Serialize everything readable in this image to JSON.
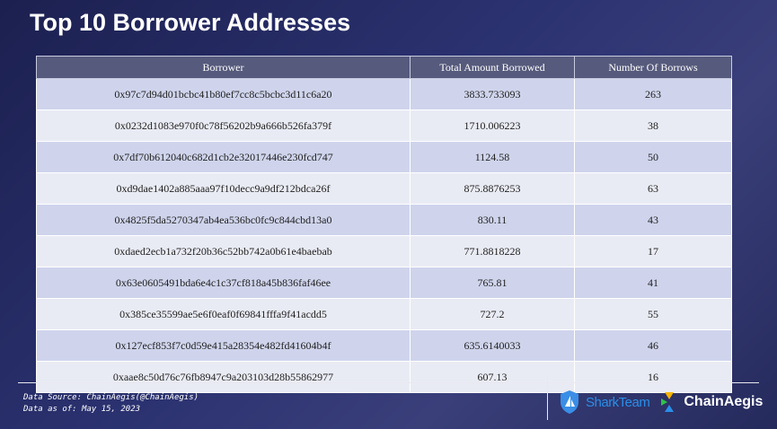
{
  "title": "Top 10 Borrower Addresses",
  "table": {
    "headers": [
      "Borrower",
      "Total Amount Borrowed",
      "Number Of Borrows"
    ],
    "rows": [
      [
        "0x97c7d94d01bcbc41b80ef7cc8c5bcbc3d11c6a20",
        "3833.733093",
        "263"
      ],
      [
        "0x0232d1083e970f0c78f56202b9a666b526fa379f",
        "1710.006223",
        "38"
      ],
      [
        "0x7df70b612040c682d1cb2e32017446e230fcd747",
        "1124.58",
        "50"
      ],
      [
        "0xd9dae1402a885aaa97f10decc9a9df212bdca26f",
        "875.8876253",
        "63"
      ],
      [
        "0x4825f5da5270347ab4ea536bc0fc9c844cbd13a0",
        "830.11",
        "43"
      ],
      [
        "0xdaed2ecb1a732f20b36c52bb742a0b61e4baebab",
        "771.8818228",
        "17"
      ],
      [
        "0x63e0605491bda6e4c1c37cf818a45b836faf46ee",
        "765.81",
        "41"
      ],
      [
        "0x385ce35599ae5e6f0eaf0f69841fffa9f41acdd5",
        "727.2",
        "55"
      ],
      [
        "0x127ecf853f7c0d59e415a28354e482fd41604b4f",
        "635.6140033",
        "46"
      ],
      [
        "0xaae8c50d76c76fb8947c9a203103d28b55862977",
        "607.13",
        "16"
      ]
    ]
  },
  "footer": {
    "source": "Data Source: ChainAegis(@ChainAegis)",
    "date": "Data as of: May 15, 2023"
  },
  "logos": {
    "sharkteam": "SharkTeam",
    "chainaegis": "ChainAegis"
  }
}
